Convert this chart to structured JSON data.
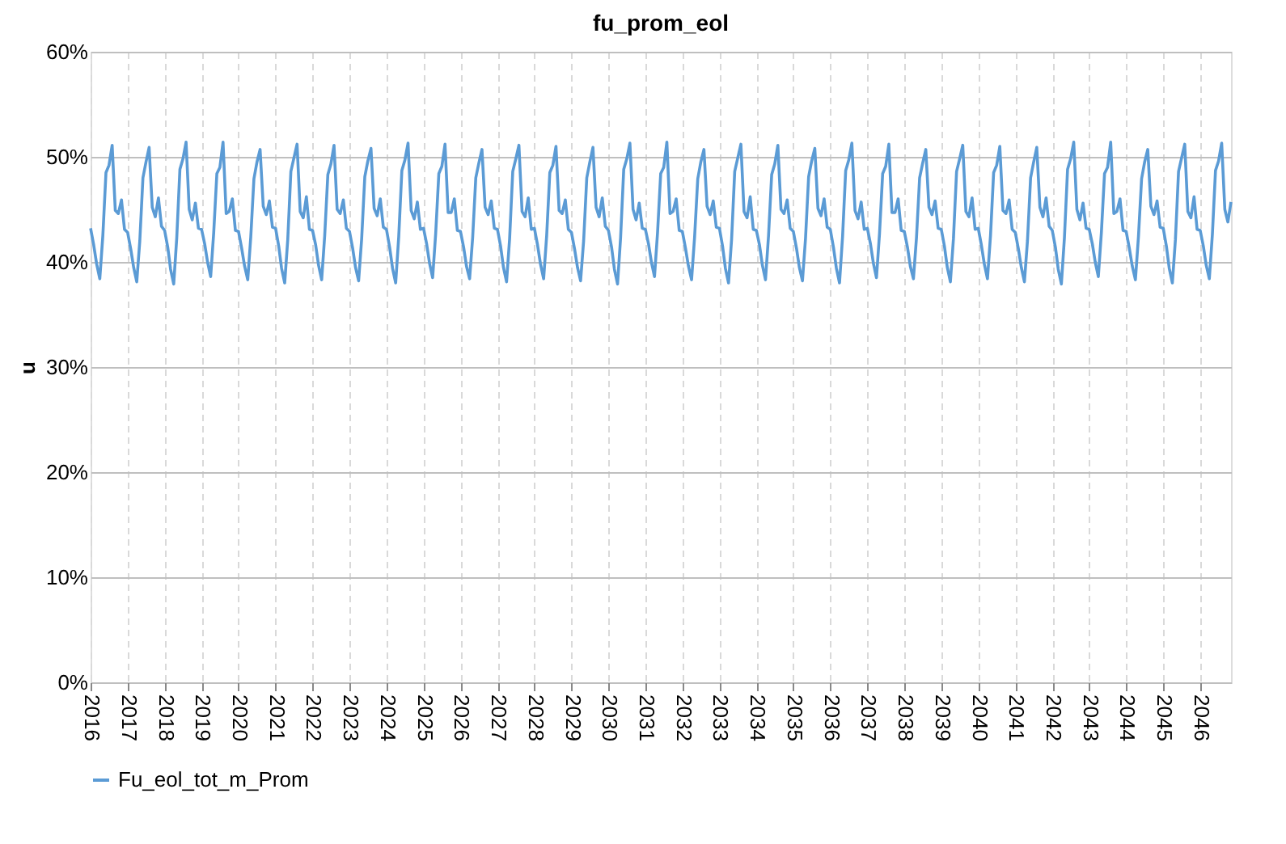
{
  "chart_data": {
    "type": "line",
    "title": "fu_prom_eol",
    "ylabel": "u",
    "xlim": [
      "2016-01",
      "2046-11"
    ],
    "xticks": [
      "2016",
      "2017",
      "2018",
      "2019",
      "2020",
      "2021",
      "2022",
      "2023",
      "2024",
      "2025",
      "2026",
      "2027",
      "2028",
      "2029",
      "2030",
      "2031",
      "2032",
      "2033",
      "2034",
      "2035",
      "2036",
      "2037",
      "2038",
      "2039",
      "2040",
      "2041",
      "2042",
      "2043",
      "2044",
      "2045",
      "2046"
    ],
    "ylim": [
      0,
      60
    ],
    "yticks": [
      {
        "value": 0,
        "label": "0%"
      },
      {
        "value": 10,
        "label": "10%"
      },
      {
        "value": 20,
        "label": "20%"
      },
      {
        "value": 30,
        "label": "30%"
      },
      {
        "value": 40,
        "label": "40%"
      },
      {
        "value": 50,
        "label": "50%"
      },
      {
        "value": 60,
        "label": "60%"
      }
    ],
    "grid": true,
    "legend": "bottom",
    "marker": "none",
    "line_style": "solid",
    "x": [
      "2016-01",
      "2016-02",
      "2016-03",
      "2016-04",
      "2016-05",
      "2016-06",
      "2016-07",
      "2016-08",
      "2016-09",
      "2016-10",
      "2016-11",
      "2016-12",
      "2017-01",
      "2017-02",
      "2017-03",
      "2017-04",
      "2017-05",
      "2017-06",
      "2017-07",
      "2017-08",
      "2017-09",
      "2017-10",
      "2017-11",
      "2017-12",
      "2018-01",
      "2018-02",
      "2018-03",
      "2018-04",
      "2018-05",
      "2018-06",
      "2018-07",
      "2018-08",
      "2018-09",
      "2018-10",
      "2018-11",
      "2018-12",
      "2019-01",
      "2019-02",
      "2019-03",
      "2019-04",
      "2019-05",
      "2019-06",
      "2019-07",
      "2019-08",
      "2019-09",
      "2019-10",
      "2019-11",
      "2019-12",
      "2020-01",
      "2020-02",
      "2020-03",
      "2020-04",
      "2020-05",
      "2020-06",
      "2020-07",
      "2020-08",
      "2020-09",
      "2020-10",
      "2020-11",
      "2020-12",
      "2021-01",
      "2021-02",
      "2021-03",
      "2021-04",
      "2021-05",
      "2021-06",
      "2021-07",
      "2021-08",
      "2021-09",
      "2021-10",
      "2021-11",
      "2021-12",
      "2022-01",
      "2022-02",
      "2022-03",
      "2022-04",
      "2022-05",
      "2022-06",
      "2022-07",
      "2022-08",
      "2022-09",
      "2022-10",
      "2022-11",
      "2022-12",
      "2023-01",
      "2023-02",
      "2023-03",
      "2023-04",
      "2023-05",
      "2023-06",
      "2023-07",
      "2023-08",
      "2023-09",
      "2023-10",
      "2023-11",
      "2023-12",
      "2024-01",
      "2024-02",
      "2024-03",
      "2024-04",
      "2024-05",
      "2024-06",
      "2024-07",
      "2024-08",
      "2024-09",
      "2024-10",
      "2024-11",
      "2024-12",
      "2025-01",
      "2025-02",
      "2025-03",
      "2025-04",
      "2025-05",
      "2025-06",
      "2025-07",
      "2025-08",
      "2025-09",
      "2025-10",
      "2025-11",
      "2025-12",
      "2026-01",
      "2026-02",
      "2026-03",
      "2026-04",
      "2026-05",
      "2026-06",
      "2026-07",
      "2026-08",
      "2026-09",
      "2026-10",
      "2026-11",
      "2026-12",
      "2027-01",
      "2027-02",
      "2027-03",
      "2027-04",
      "2027-05",
      "2027-06",
      "2027-07",
      "2027-08",
      "2027-09",
      "2027-10",
      "2027-11",
      "2027-12",
      "2028-01",
      "2028-02",
      "2028-03",
      "2028-04",
      "2028-05",
      "2028-06",
      "2028-07",
      "2028-08",
      "2028-09",
      "2028-10",
      "2028-11",
      "2028-12",
      "2029-01",
      "2029-02",
      "2029-03",
      "2029-04",
      "2029-05",
      "2029-06",
      "2029-07",
      "2029-08",
      "2029-09",
      "2029-10",
      "2029-11",
      "2029-12",
      "2030-01",
      "2030-02",
      "2030-03",
      "2030-04",
      "2030-05",
      "2030-06",
      "2030-07",
      "2030-08",
      "2030-09",
      "2030-10",
      "2030-11",
      "2030-12",
      "2031-01",
      "2031-02",
      "2031-03",
      "2031-04",
      "2031-05",
      "2031-06",
      "2031-07",
      "2031-08",
      "2031-09",
      "2031-10",
      "2031-11",
      "2031-12",
      "2032-01",
      "2032-02",
      "2032-03",
      "2032-04",
      "2032-05",
      "2032-06",
      "2032-07",
      "2032-08",
      "2032-09",
      "2032-10",
      "2032-11",
      "2032-12",
      "2033-01",
      "2033-02",
      "2033-03",
      "2033-04",
      "2033-05",
      "2033-06",
      "2033-07",
      "2033-08",
      "2033-09",
      "2033-10",
      "2033-11",
      "2033-12",
      "2034-01",
      "2034-02",
      "2034-03",
      "2034-04",
      "2034-05",
      "2034-06",
      "2034-07",
      "2034-08",
      "2034-09",
      "2034-10",
      "2034-11",
      "2034-12",
      "2035-01",
      "2035-02",
      "2035-03",
      "2035-04",
      "2035-05",
      "2035-06",
      "2035-07",
      "2035-08",
      "2035-09",
      "2035-10",
      "2035-11",
      "2035-12",
      "2036-01",
      "2036-02",
      "2036-03",
      "2036-04",
      "2036-05",
      "2036-06",
      "2036-07",
      "2036-08",
      "2036-09",
      "2036-10",
      "2036-11",
      "2036-12",
      "2037-01",
      "2037-02",
      "2037-03",
      "2037-04",
      "2037-05",
      "2037-06",
      "2037-07",
      "2037-08",
      "2037-09",
      "2037-10",
      "2037-11",
      "2037-12",
      "2038-01",
      "2038-02",
      "2038-03",
      "2038-04",
      "2038-05",
      "2038-06",
      "2038-07",
      "2038-08",
      "2038-09",
      "2038-10",
      "2038-11",
      "2038-12",
      "2039-01",
      "2039-02",
      "2039-03",
      "2039-04",
      "2039-05",
      "2039-06",
      "2039-07",
      "2039-08",
      "2039-09",
      "2039-10",
      "2039-11",
      "2039-12",
      "2040-01",
      "2040-02",
      "2040-03",
      "2040-04",
      "2040-05",
      "2040-06",
      "2040-07",
      "2040-08",
      "2040-09",
      "2040-10",
      "2040-11",
      "2040-12",
      "2041-01",
      "2041-02",
      "2041-03",
      "2041-04",
      "2041-05",
      "2041-06",
      "2041-07",
      "2041-08",
      "2041-09",
      "2041-10",
      "2041-11",
      "2041-12",
      "2042-01",
      "2042-02",
      "2042-03",
      "2042-04",
      "2042-05",
      "2042-06",
      "2042-07",
      "2042-08",
      "2042-09",
      "2042-10",
      "2042-11",
      "2042-12",
      "2043-01",
      "2043-02",
      "2043-03",
      "2043-04",
      "2043-05",
      "2043-06",
      "2043-07",
      "2043-08",
      "2043-09",
      "2043-10",
      "2043-11",
      "2043-12",
      "2044-01",
      "2044-02",
      "2044-03",
      "2044-04",
      "2044-05",
      "2044-06",
      "2044-07",
      "2044-08",
      "2044-09",
      "2044-10",
      "2044-11",
      "2044-12",
      "2045-01",
      "2045-02",
      "2045-03",
      "2045-04",
      "2045-05",
      "2045-06",
      "2045-07",
      "2045-08",
      "2045-09",
      "2045-10",
      "2045-11",
      "2045-12",
      "2046-01",
      "2046-02",
      "2046-03",
      "2046-04",
      "2046-05",
      "2046-06",
      "2046-07",
      "2046-08",
      "2046-09",
      "2046-10",
      "2046-11"
    ],
    "series": [
      {
        "name": "Fu_eol_tot_m_Prom",
        "color": "#5b9bd5",
        "values": [
          43.2,
          41.6,
          39.8,
          38.4,
          42.5,
          48.5,
          49.2,
          51.1,
          44.9,
          44.6,
          45.9,
          43.1,
          42.8,
          41.2,
          39.5,
          38.1,
          42.0,
          48.0,
          49.5,
          50.9,
          45.2,
          44.3,
          46.1,
          43.4,
          43.0,
          41.4,
          39.3,
          37.9,
          42.3,
          48.8,
          49.8,
          51.4,
          45.0,
          44.0,
          45.6,
          43.2,
          43.1,
          41.7,
          40.0,
          38.6,
          42.8,
          48.4,
          49.0,
          51.4,
          44.6,
          44.8,
          46.0,
          43.0,
          42.9,
          41.3,
          39.6,
          38.3,
          42.4,
          47.9,
          49.5,
          50.7,
          45.3,
          44.5,
          45.8,
          43.3,
          43.2,
          41.5,
          39.4,
          38.0,
          42.1,
          48.6,
          49.9,
          51.2,
          44.8,
          44.2,
          46.2,
          43.1,
          43.0,
          41.6,
          39.7,
          38.3,
          42.5,
          48.3,
          49.3,
          51.1,
          45.0,
          44.6,
          45.9,
          43.2,
          42.9,
          41.3,
          39.5,
          38.2,
          42.2,
          48.1,
          49.6,
          50.8,
          45.1,
          44.4,
          46.0,
          43.3,
          43.1,
          41.4,
          39.4,
          38.0,
          42.4,
          48.7,
          49.7,
          51.3,
          44.9,
          44.1,
          45.7,
          43.1,
          43.2,
          41.7,
          39.9,
          38.5,
          42.7,
          48.4,
          49.1,
          51.2,
          44.7,
          44.7,
          46.0,
          43.0,
          42.9,
          41.4,
          39.6,
          38.4,
          42.3,
          48.0,
          49.4,
          50.7,
          45.2,
          44.5,
          45.8,
          43.2,
          43.1,
          41.5,
          39.5,
          38.1,
          42.2,
          48.6,
          49.8,
          51.1,
          44.8,
          44.3,
          46.1,
          43.1,
          43.2,
          41.6,
          39.8,
          38.4,
          42.5,
          48.5,
          49.2,
          51.0,
          44.9,
          44.6,
          45.9,
          43.1,
          42.8,
          41.2,
          39.5,
          38.2,
          42.0,
          48.0,
          49.5,
          50.9,
          45.2,
          44.3,
          46.1,
          43.4,
          43.0,
          41.4,
          39.3,
          37.9,
          42.3,
          48.8,
          49.8,
          51.3,
          45.0,
          44.0,
          45.6,
          43.2,
          43.1,
          41.7,
          40.0,
          38.6,
          42.8,
          48.4,
          49.0,
          51.4,
          44.6,
          44.8,
          46.0,
          43.0,
          42.9,
          41.3,
          39.6,
          38.3,
          42.4,
          47.9,
          49.5,
          50.7,
          45.3,
          44.5,
          45.8,
          43.3,
          43.2,
          41.5,
          39.4,
          38.0,
          42.1,
          48.6,
          49.9,
          51.2,
          44.8,
          44.2,
          46.2,
          43.1,
          43.0,
          41.6,
          39.7,
          38.3,
          42.5,
          48.3,
          49.3,
          51.1,
          45.0,
          44.6,
          45.9,
          43.2,
          42.9,
          41.3,
          39.5,
          38.2,
          42.2,
          48.1,
          49.6,
          50.8,
          45.1,
          44.4,
          46.0,
          43.3,
          43.1,
          41.4,
          39.4,
          38.0,
          42.4,
          48.7,
          49.7,
          51.3,
          44.9,
          44.1,
          45.7,
          43.1,
          43.2,
          41.7,
          39.9,
          38.5,
          42.7,
          48.4,
          49.1,
          51.2,
          44.7,
          44.7,
          46.0,
          43.0,
          42.9,
          41.4,
          39.6,
          38.4,
          42.3,
          48.0,
          49.4,
          50.7,
          45.2,
          44.5,
          45.8,
          43.2,
          43.1,
          41.5,
          39.5,
          38.1,
          42.2,
          48.6,
          49.8,
          51.1,
          44.8,
          44.3,
          46.1,
          43.1,
          43.2,
          41.6,
          39.8,
          38.4,
          42.5,
          48.5,
          49.2,
          51.0,
          44.9,
          44.6,
          45.9,
          43.1,
          42.8,
          41.2,
          39.5,
          38.1,
          42.0,
          48.0,
          49.5,
          50.9,
          45.2,
          44.3,
          46.1,
          43.4,
          43.0,
          41.4,
          39.3,
          37.9,
          42.3,
          48.8,
          49.8,
          51.4,
          45.0,
          44.0,
          45.6,
          43.2,
          43.1,
          41.7,
          40.0,
          38.6,
          42.8,
          48.4,
          49.0,
          51.4,
          44.6,
          44.8,
          46.0,
          43.0,
          42.9,
          41.3,
          39.6,
          38.3,
          42.4,
          47.9,
          49.5,
          50.7,
          45.3,
          44.5,
          45.8,
          43.3,
          43.2,
          41.5,
          39.4,
          38.0,
          42.1,
          48.6,
          49.9,
          51.2,
          44.8,
          44.2,
          46.2,
          43.1,
          43.0,
          41.5,
          39.7,
          38.4,
          42.6,
          48.7,
          49.6,
          51.3,
          45.0,
          43.8,
          45.7
        ]
      }
    ]
  }
}
